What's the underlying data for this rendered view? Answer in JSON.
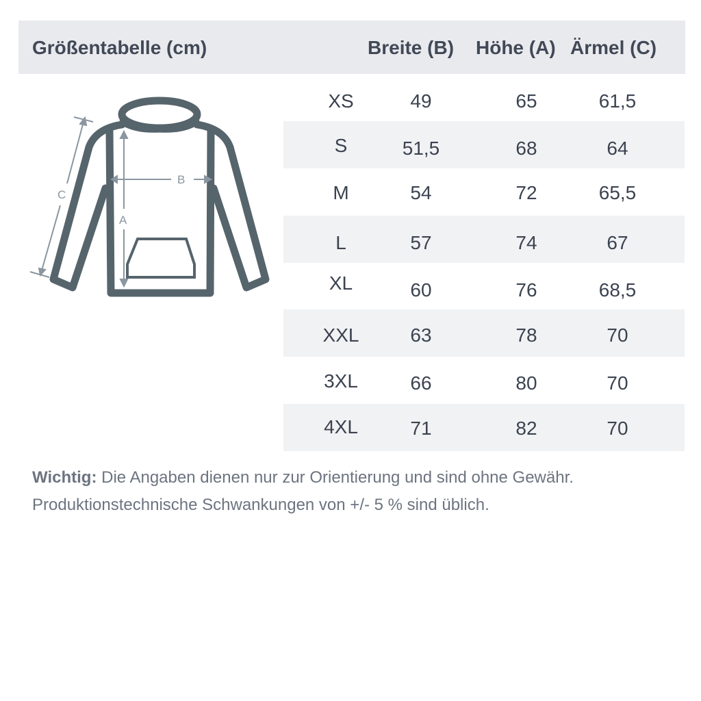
{
  "header": {
    "title": "Größentabelle (cm)",
    "columns": [
      "Breite (B)",
      "Höhe (A)",
      "Ärmel (C)"
    ]
  },
  "diagram": {
    "labels": {
      "width": "B",
      "height": "A",
      "sleeve": "C"
    },
    "line_color": "#56646c",
    "arrow_color": "#8a96a0"
  },
  "rows": [
    {
      "size": "XS",
      "b": "49",
      "a": "65",
      "c": "61,5"
    },
    {
      "size": "S",
      "b": "51,5",
      "a": "68",
      "c": "64"
    },
    {
      "size": "M",
      "b": "54",
      "a": "72",
      "c": "65,5"
    },
    {
      "size": "L",
      "b": "57",
      "a": "74",
      "c": "67"
    },
    {
      "size": "XL",
      "b": "60",
      "a": "76",
      "c": "68,5"
    },
    {
      "size": "XXL",
      "b": "63",
      "a": "78",
      "c": "70"
    },
    {
      "size": "3XL",
      "b": "66",
      "a": "80",
      "c": "70"
    },
    {
      "size": "4XL",
      "b": "71",
      "a": "82",
      "c": "70"
    }
  ],
  "note": {
    "label": "Wichtig:",
    "line1": " Die Angaben dienen nur zur Orientierung und sind ohne Gewähr.",
    "line2": "Produktionstechnische Schwankungen von +/- 5 % sind üblich."
  }
}
